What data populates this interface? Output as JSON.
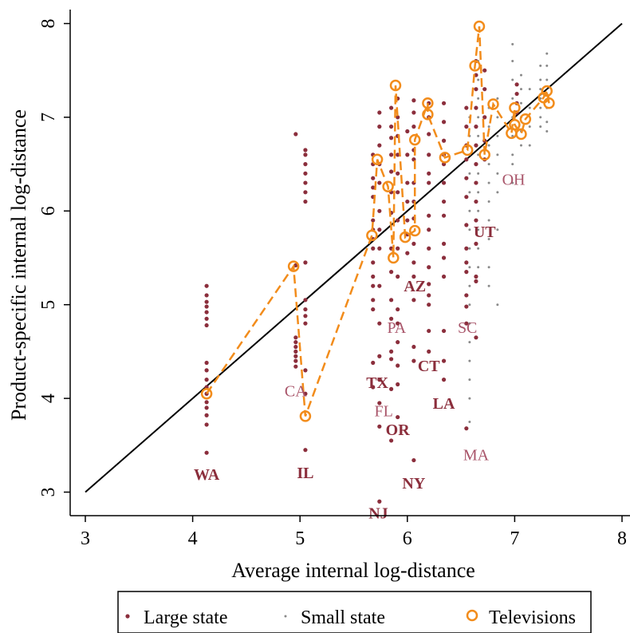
{
  "chart_data": {
    "type": "scatter",
    "xlabel": "Average internal log-distance",
    "ylabel": "Product-specific internal log-distance",
    "xlim": [
      3,
      8
    ],
    "ylim": [
      2.9,
      8.2
    ],
    "x_ticks": [
      "3",
      "4",
      "5",
      "6",
      "7",
      "8"
    ],
    "y_ticks": [
      "3",
      "4",
      "5",
      "6",
      "7",
      "8"
    ],
    "grid": false,
    "legend_position": "bottom",
    "reference_line": {
      "from": [
        3,
        3
      ],
      "to": [
        8,
        8
      ]
    },
    "series": [
      {
        "name": "Large state",
        "marker": "dot",
        "color": "#8b2e3c",
        "columns": [
          {
            "x": 4.13,
            "y": [
              5.2,
              5.1,
              5.03,
              4.98,
              4.92,
              4.85,
              4.78,
              4.38,
              4.3,
              4.2,
              4.12,
              4.05,
              3.96,
              3.9,
              3.82,
              3.72,
              3.42
            ]
          },
          {
            "x": 4.96,
            "y": [
              6.82,
              4.65,
              4.6,
              4.55,
              4.5,
              4.45,
              4.4,
              4.34,
              5.42
            ]
          },
          {
            "x": 5.05,
            "y": [
              6.65,
              6.6,
              6.5,
              6.4,
              6.3,
              6.2,
              6.1,
              5.45,
              5.05,
              4.95,
              4.88,
              4.8,
              4.3,
              4.05,
              3.45
            ]
          },
          {
            "x": 5.68,
            "y": [
              6.6,
              6.5,
              6.35,
              6.25,
              6.15,
              5.9,
              5.8,
              5.7,
              5.6,
              5.45,
              5.3,
              5.2,
              5.05,
              4.95,
              4.38,
              4.12
            ]
          },
          {
            "x": 5.74,
            "y": [
              7.05,
              6.9,
              6.7,
              6.5,
              6.3,
              6.0,
              5.8,
              5.6,
              5.2,
              4.8,
              4.45,
              4.2,
              3.95,
              3.7,
              2.9
            ]
          },
          {
            "x": 5.85,
            "y": [
              7.1,
              6.9,
              6.78,
              6.6,
              6.42,
              6.2,
              5.98,
              5.6,
              5.35,
              5.05,
              4.85,
              4.5,
              4.42,
              4.1,
              3.55
            ]
          },
          {
            "x": 5.91,
            "y": [
              7.2,
              7.0,
              6.8,
              6.6,
              6.4,
              6.2,
              5.9,
              5.6,
              5.3,
              4.95,
              4.8,
              4.6,
              4.35,
              4.15,
              3.8
            ]
          },
          {
            "x": 6.0,
            "y": [
              6.85,
              6.6,
              6.3,
              6.1,
              5.9,
              5.75,
              5.55
            ]
          },
          {
            "x": 6.06,
            "y": [
              7.18,
              7.05,
              6.9,
              6.65,
              6.55,
              6.3,
              6.1,
              5.92,
              5.65,
              5.45,
              5.3,
              5.05,
              4.55,
              4.4,
              3.34
            ]
          },
          {
            "x": 6.2,
            "y": [
              7.15,
              7.0,
              6.82,
              6.6,
              6.4,
              6.3,
              5.95,
              5.8,
              5.6,
              5.4,
              5.22,
              5.1,
              5.0,
              4.72,
              4.5
            ]
          },
          {
            "x": 6.34,
            "y": [
              7.15,
              6.95,
              6.75,
              6.6,
              6.5,
              6.3,
              6.1,
              5.95,
              5.65,
              5.5,
              5.3,
              4.72,
              4.4,
              4.2
            ]
          },
          {
            "x": 6.55,
            "y": [
              7.1,
              6.9,
              6.7,
              6.55,
              6.35,
              6.15,
              5.85,
              5.6,
              5.45,
              5.35,
              5.1,
              4.98,
              4.8,
              3.68
            ]
          },
          {
            "x": 6.64,
            "y": [
              7.6,
              7.45,
              7.3,
              7.1,
              6.9,
              6.7,
              6.5,
              6.3,
              6.1,
              5.9,
              5.65,
              5.3,
              5.25,
              4.65
            ]
          },
          {
            "x": 6.72,
            "y": [
              7.5,
              7.3,
              7.0,
              6.75,
              6.55
            ]
          },
          {
            "x": 7.02,
            "y": [
              7.35,
              7.25,
              7.15,
              7.05
            ]
          }
        ]
      },
      {
        "name": "Small state",
        "marker": "small-dot",
        "color": "#8a8a8a",
        "columns": [
          {
            "x": 6.58,
            "y": [
              7.0,
              6.8,
              6.6,
              6.4,
              6.2,
              6.0,
              5.8,
              5.6,
              5.4,
              5.2,
              5.0,
              4.8,
              4.6,
              4.4,
              4.2,
              4.0,
              3.75
            ]
          },
          {
            "x": 6.66,
            "y": [
              7.6,
              7.4,
              7.2,
              7.0,
              6.8,
              6.6,
              6.4,
              6.2,
              6.0,
              5.8,
              5.6,
              5.4
            ]
          },
          {
            "x": 6.76,
            "y": [
              7.1,
              6.9,
              6.7,
              6.5,
              6.3,
              6.1,
              5.9,
              5.7,
              5.4,
              5.2
            ]
          },
          {
            "x": 6.84,
            "y": [
              7.2,
              7.0,
              6.8,
              6.6,
              6.4,
              6.2,
              5.8,
              5.0
            ]
          },
          {
            "x": 6.98,
            "y": [
              7.78,
              7.6,
              7.4,
              7.2,
              7.0,
              6.8,
              6.6,
              6.5,
              6.3
            ]
          },
          {
            "x": 7.06,
            "y": [
              7.45,
              7.3,
              7.15,
              7.0,
              6.85,
              6.7
            ]
          },
          {
            "x": 7.14,
            "y": [
              7.3,
              7.1,
              6.9,
              6.7
            ]
          },
          {
            "x": 7.24,
            "y": [
              7.55,
              7.4,
              7.3,
              7.2,
              7.1,
              7.0,
              6.9
            ]
          },
          {
            "x": 7.3,
            "y": [
              7.68,
              7.55,
              7.4,
              7.25,
              7.1,
              6.95,
              6.85
            ]
          }
        ]
      },
      {
        "name": "Televisions",
        "marker": "circle",
        "connector": "dashed",
        "color": "#f28c1b",
        "points": [
          [
            4.13,
            4.05
          ],
          [
            4.94,
            5.41
          ],
          [
            5.05,
            3.81
          ],
          [
            5.67,
            5.74
          ],
          [
            5.72,
            6.55
          ],
          [
            5.82,
            6.26
          ],
          [
            5.87,
            5.5
          ],
          [
            5.89,
            7.34
          ],
          [
            5.98,
            5.72
          ],
          [
            6.07,
            5.79
          ],
          [
            6.07,
            6.76
          ],
          [
            6.19,
            7.15
          ],
          [
            6.19,
            7.03
          ],
          [
            6.35,
            6.57
          ],
          [
            6.56,
            6.65
          ],
          [
            6.63,
            7.55
          ],
          [
            6.67,
            7.97
          ],
          [
            6.72,
            6.6
          ],
          [
            6.8,
            7.14
          ],
          [
            6.97,
            6.83
          ],
          [
            7.0,
            7.1
          ],
          [
            7.0,
            6.92
          ],
          [
            7.06,
            6.82
          ],
          [
            7.1,
            6.98
          ],
          [
            7.27,
            7.21
          ],
          [
            7.3,
            7.28
          ],
          [
            7.32,
            7.15
          ]
        ]
      }
    ],
    "annotations": [
      {
        "text": "WA",
        "x": 4.13,
        "y": 3.19,
        "style": "bold"
      },
      {
        "text": "CA",
        "x": 4.96,
        "y": 4.08,
        "style": "light"
      },
      {
        "text": "IL",
        "x": 5.05,
        "y": 3.21,
        "style": "bold"
      },
      {
        "text": "TX",
        "x": 5.72,
        "y": 4.17,
        "style": "bold"
      },
      {
        "text": "FL",
        "x": 5.78,
        "y": 3.87,
        "style": "light"
      },
      {
        "text": "OR",
        "x": 5.91,
        "y": 3.67,
        "style": "bold"
      },
      {
        "text": "NJ",
        "x": 5.73,
        "y": 2.78,
        "style": "bold"
      },
      {
        "text": "NY",
        "x": 6.06,
        "y": 3.1,
        "style": "bold"
      },
      {
        "text": "PA",
        "x": 5.9,
        "y": 4.76,
        "style": "light"
      },
      {
        "text": "AZ",
        "x": 6.07,
        "y": 5.2,
        "style": "bold"
      },
      {
        "text": "CT",
        "x": 6.2,
        "y": 4.35,
        "style": "bold"
      },
      {
        "text": "LA",
        "x": 6.34,
        "y": 3.95,
        "style": "bold"
      },
      {
        "text": "SC",
        "x": 6.56,
        "y": 4.76,
        "style": "light"
      },
      {
        "text": "MA",
        "x": 6.64,
        "y": 3.4,
        "style": "light"
      },
      {
        "text": "UT",
        "x": 6.72,
        "y": 5.78,
        "style": "bold"
      },
      {
        "text": "OH",
        "x": 6.99,
        "y": 6.34,
        "style": "light"
      }
    ]
  },
  "legend": {
    "items": [
      {
        "label": "Large state"
      },
      {
        "label": "Small state"
      },
      {
        "label": "Televisions"
      }
    ]
  }
}
